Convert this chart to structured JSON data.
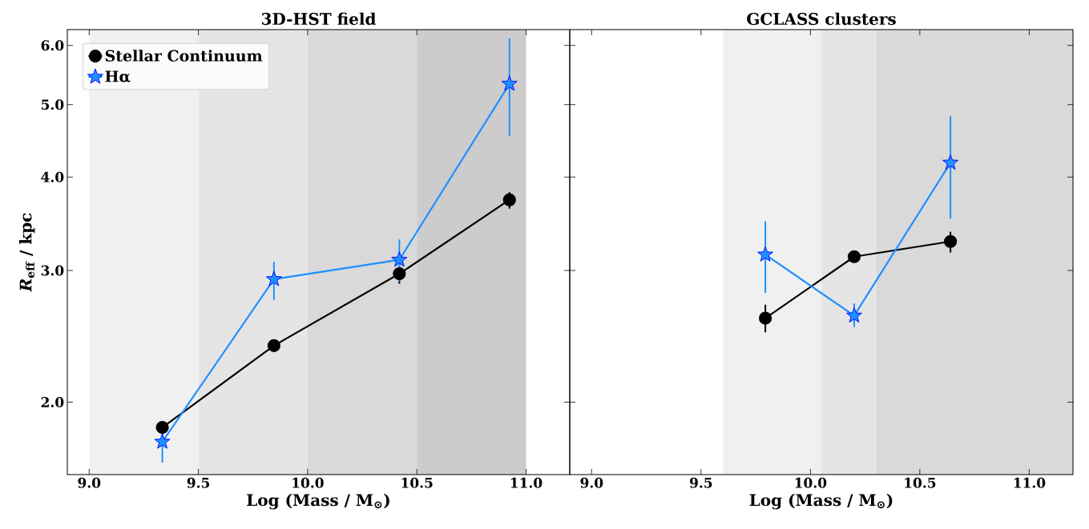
{
  "chart_data": [
    {
      "type": "line",
      "title": "3D-HST field",
      "xlabel": "Log (Mass / M$_{⊙}$)",
      "ylabel": "*R*$_{eff}$ / kpc",
      "xlim": [
        8.9,
        11.2
      ],
      "ylim": [
        1.6,
        6.3
      ],
      "log": "y",
      "legend": "top left",
      "xticks": [
        {
          "value": 9.0,
          "label": "9.0"
        },
        {
          "value": 9.5,
          "label": "9.5"
        },
        {
          "value": 10.0,
          "label": "10.0"
        },
        {
          "value": 10.5,
          "label": "10.5"
        },
        {
          "value": 11.0,
          "label": "11.0"
        }
      ],
      "yticks": [
        {
          "value": 2,
          "label": "2.0"
        },
        {
          "value": 3,
          "label": "3.0"
        },
        {
          "value": 4,
          "label": "4.0"
        },
        {
          "value": 5,
          "label": "5.0"
        },
        {
          "value": 6,
          "label": "6.0"
        }
      ],
      "bands": [
        {
          "axis": "x",
          "from": 9.0,
          "to": 9.5,
          "color": "#f0f0f0"
        },
        {
          "axis": "x",
          "from": 9.5,
          "to": 10.0,
          "color": "#e5e5e5"
        },
        {
          "axis": "x",
          "from": 10.0,
          "to": 10.5,
          "color": "#d9d9d9"
        },
        {
          "axis": "x",
          "from": 10.5,
          "to": 11.0,
          "color": "#cccccc"
        }
      ],
      "series": [
        {
          "name": "Stellar Continuum",
          "color": "#000000",
          "marker": "circle",
          "x": [
            9.335,
            9.846,
            10.42,
            10.924
          ],
          "values": [
            1.85,
            2.38,
            2.97,
            3.73
          ],
          "errors": [
            null,
            null,
            [
              2.88,
              3.04
            ],
            [
              3.63,
              3.82
            ]
          ]
        },
        {
          "name": "Hα",
          "color": "#1e90ff",
          "marker": "star",
          "x": [
            9.335,
            9.846,
            10.42,
            10.924
          ],
          "values": [
            1.77,
            2.92,
            3.1,
            5.33
          ],
          "errors": [
            [
              1.66,
              1.88
            ],
            [
              2.74,
              3.08
            ],
            [
              2.9,
              3.3
            ],
            [
              4.54,
              6.13
            ]
          ]
        }
      ]
    },
    {
      "type": "line",
      "title": "GCLASS clusters",
      "xlabel": "Log (Mass / M$_{⊙}$)",
      "xlim": [
        8.9,
        11.2
      ],
      "ylim": [
        1.6,
        6.3
      ],
      "log": "y",
      "tick_labels": "x",
      "xticks": [
        {
          "value": 9.0,
          "label": "9.0"
        },
        {
          "value": 9.5,
          "label": "9.5"
        },
        {
          "value": 10.0,
          "label": "10.0"
        },
        {
          "value": 10.5,
          "label": "10.5"
        },
        {
          "value": 11.0,
          "label": "11.0"
        }
      ],
      "yticks": [
        {
          "value": 2,
          "label": null
        },
        {
          "value": 3,
          "label": null
        },
        {
          "value": 4,
          "label": null
        },
        {
          "value": 5,
          "label": null
        },
        {
          "value": 6,
          "label": null
        }
      ],
      "bands": [
        {
          "axis": "x",
          "from": 9.6,
          "to": 10.05,
          "color": "#f0f0f0"
        },
        {
          "axis": "x",
          "from": 10.05,
          "to": 10.3,
          "color": "#e5e5e5"
        },
        {
          "axis": "x",
          "from": 10.3,
          "to": 11.2,
          "color": "#d9d9d9"
        }
      ],
      "series": [
        {
          "color": "#000000",
          "marker": "circle",
          "x": [
            9.794,
            10.2,
            10.64
          ],
          "values": [
            2.59,
            3.13,
            3.28
          ],
          "errors": [
            [
              2.48,
              2.7
            ],
            [
              3.08,
              3.18
            ],
            [
              3.17,
              3.38
            ]
          ]
        },
        {
          "color": "#1e90ff",
          "marker": "star",
          "x": [
            9.794,
            10.2,
            10.64
          ],
          "values": [
            3.15,
            2.61,
            4.18
          ],
          "errors": [
            [
              2.8,
              3.49
            ],
            [
              2.52,
              2.71
            ],
            [
              3.52,
              4.83
            ]
          ]
        }
      ]
    }
  ]
}
